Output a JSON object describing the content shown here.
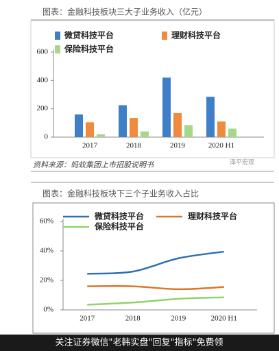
{
  "chart_data": [
    {
      "type": "bar",
      "title": "图表：金融科技板块三大子业务收入（亿元）",
      "categories": [
        "2017",
        "2018",
        "2019",
        "2020 H1"
      ],
      "series": [
        {
          "name": "微贷科技平台",
          "color": "#3f7fc8",
          "values": [
            160,
            225,
            420,
            285
          ]
        },
        {
          "name": "理财科技平台",
          "color": "#ef8a3e",
          "values": [
            105,
            135,
            170,
            110
          ]
        },
        {
          "name": "保险科技平台",
          "color": "#a6d88a",
          "values": [
            20,
            40,
            85,
            60
          ]
        }
      ],
      "ylim": [
        0,
        600
      ],
      "yticks": [
        0,
        200,
        400,
        600
      ],
      "source": "资料来源：蚂蚁集团上市招股说明书",
      "watermark": "泽平宏观"
    },
    {
      "type": "line",
      "title": "图表：金融科技板块下三个子业务收入占比",
      "categories": [
        "2017",
        "2018",
        "2019",
        "2020 H1"
      ],
      "series": [
        {
          "name": "微贷科技平台",
          "color": "#2f6fb5",
          "values": [
            24.5,
            26,
            35,
            39.5
          ]
        },
        {
          "name": "理财科技平台",
          "color": "#d9772a",
          "values": [
            16,
            16,
            14,
            15.5
          ]
        },
        {
          "name": "保险科技平台",
          "color": "#8fd36a",
          "values": [
            3.5,
            5,
            7.5,
            8.5
          ]
        }
      ],
      "ylim": [
        0,
        60
      ],
      "yticks": [
        {
          "value": 0,
          "label": "0%"
        },
        {
          "value": 20,
          "label": "20%"
        },
        {
          "value": 40,
          "label": "40%"
        },
        {
          "value": 60,
          "label": "60%"
        }
      ]
    }
  ],
  "footer_banner": "关注证券微信\"老韩实盘\"回复\"指标\"免费领"
}
